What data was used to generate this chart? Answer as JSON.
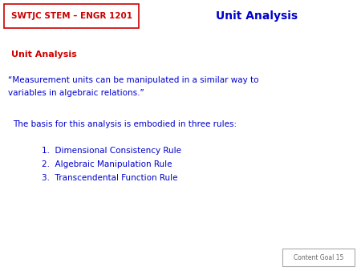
{
  "bg_color": "#ffffff",
  "header_box_text": "SWTJC STEM – ENGR 1201",
  "header_box_color": "#cc0000",
  "header_box_bg": "#ffffff",
  "header_title": "Unit Analysis",
  "header_title_color": "#0000cc",
  "section_title": "Unit Analysis",
  "section_title_color": "#cc0000",
  "quote_line1": "“Measurement units can be manipulated in a similar way to",
  "quote_line2": "variables in algebraic relations.”",
  "quote_color": "#0000cc",
  "basis_text": "The basis for this analysis is embodied in three rules:",
  "basis_color": "#0000cc",
  "list_items": [
    "Dimensional Consistency Rule",
    "Algebraic Manipulation Rule",
    "Transcendental Function Rule"
  ],
  "list_color": "#0000cc",
  "footer_text": "Content Goal 15",
  "footer_color": "#666666",
  "footer_box_color": "#aaaaaa"
}
